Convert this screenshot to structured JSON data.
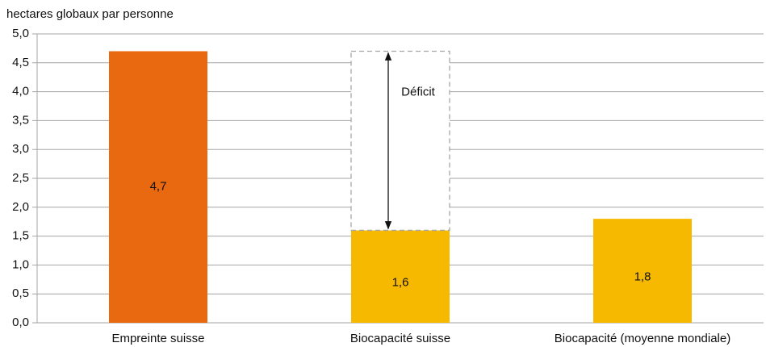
{
  "chart_data": {
    "type": "bar",
    "y_axis_label": "hectares globaux par personne",
    "categories": [
      "Empreinte suisse",
      "Biocapacité suisse",
      "Biocapacité (moyenne mondiale)"
    ],
    "values": [
      4.7,
      1.6,
      1.8
    ],
    "value_labels": [
      "4,7",
      "1,6",
      "1,8"
    ],
    "colors": [
      "#e8690f",
      "#f7b900",
      "#f7b900"
    ],
    "annotation": "Déficit",
    "ylim": [
      0,
      5
    ],
    "yticks": [
      {
        "value": 0,
        "label": "0,0"
      },
      {
        "value": 0.5,
        "label": "0,5"
      },
      {
        "value": 1,
        "label": "1,0"
      },
      {
        "value": 1.5,
        "label": "1,5"
      },
      {
        "value": 2,
        "label": "2,0"
      },
      {
        "value": 2.5,
        "label": "2,5"
      },
      {
        "value": 3,
        "label": "3,0"
      },
      {
        "value": 3.5,
        "label": "3,5"
      },
      {
        "value": 4,
        "label": "4,0"
      },
      {
        "value": 4.5,
        "label": "4,5"
      },
      {
        "value": 5,
        "label": "5,0"
      }
    ],
    "grid": true
  }
}
